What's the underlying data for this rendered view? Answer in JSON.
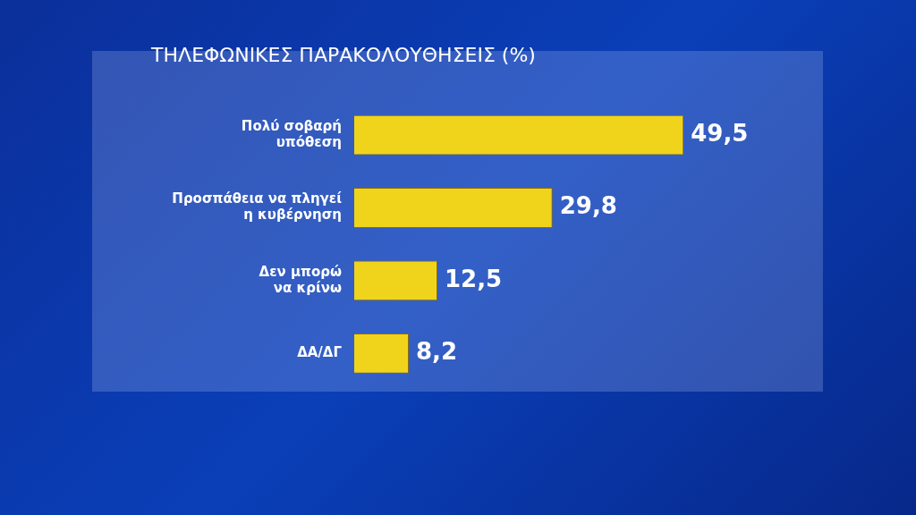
{
  "chart_data": {
    "type": "bar",
    "orientation": "horizontal",
    "title": "ΤΗΛΕΦΩΝΙΚΕΣ ΠΑΡΑΚΟΛΟΥΘΗΣΕΙΣ (%)",
    "categories": [
      "Πολύ σοβαρή\nυπόθεση",
      "Προσπάθεια να πληγεί\nη κυβέρνηση",
      "Δεν μπορώ\nνα κρίνω",
      "ΔΑ/ΔΓ"
    ],
    "values": [
      49.5,
      29.8,
      12.5,
      8.2
    ],
    "value_labels": [
      "49,5",
      "29,8",
      "12,5",
      "8,2"
    ],
    "color": "#f0d41c",
    "tick_labels": "y"
  }
}
